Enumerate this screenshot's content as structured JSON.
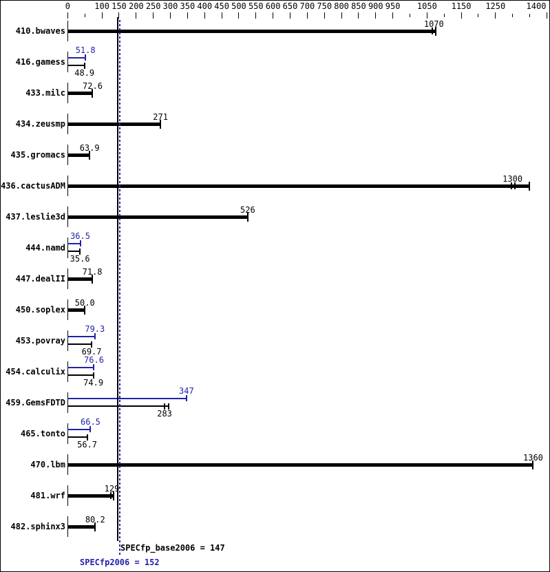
{
  "chart": {
    "background": "#ffffff",
    "colors": {
      "base": "#000000",
      "peak": "#2222aa"
    },
    "axis": {
      "max": 1400,
      "major_ticks": [
        {
          "value": 0,
          "label": "0"
        },
        {
          "value": 100,
          "label": "100"
        },
        {
          "value": 150,
          "label": "150"
        },
        {
          "value": 200,
          "label": "200"
        },
        {
          "value": 250,
          "label": "250"
        },
        {
          "value": 300,
          "label": "300"
        },
        {
          "value": 350,
          "label": "350"
        },
        {
          "value": 400,
          "label": "400"
        },
        {
          "value": 450,
          "label": "450"
        },
        {
          "value": 500,
          "label": "500"
        },
        {
          "value": 550,
          "label": "550"
        },
        {
          "value": 600,
          "label": "600"
        },
        {
          "value": 650,
          "label": "650"
        },
        {
          "value": 700,
          "label": "700"
        },
        {
          "value": 750,
          "label": "750"
        },
        {
          "value": 800,
          "label": "800"
        },
        {
          "value": 850,
          "label": "850"
        },
        {
          "value": 900,
          "label": "900"
        },
        {
          "value": 950,
          "label": "950"
        },
        {
          "value": 1050,
          "label": "1050"
        },
        {
          "value": 1150,
          "label": "1150"
        },
        {
          "value": 1250,
          "label": "1250"
        },
        {
          "value": 1400,
          "label": "1400"
        }
      ],
      "minor_ticks": [
        50,
        1000,
        1100,
        1200,
        1300,
        1350
      ]
    },
    "rows": [
      {
        "name": "410.bwaves",
        "bars": [
          {
            "series": "base",
            "label": "1070",
            "value": 1070,
            "end": 1075,
            "ticks": [
              1065,
              1075
            ],
            "label_side": "above"
          }
        ]
      },
      {
        "name": "416.gamess",
        "bars": [
          {
            "series": "peak",
            "label": "51.8",
            "value": 51.8,
            "end": 51.8,
            "ticks": [
              51.8
            ],
            "label_side": "above"
          },
          {
            "series": "base",
            "label": "48.9",
            "value": 48.9,
            "end": 48.9,
            "ticks": [
              48.9
            ],
            "label_side": "below"
          }
        ]
      },
      {
        "name": "433.milc",
        "bars": [
          {
            "series": "base",
            "label": "72.6",
            "value": 72.6,
            "end": 72.6,
            "ticks": [
              72.6
            ],
            "label_side": "above"
          }
        ]
      },
      {
        "name": "434.zeusmp",
        "bars": [
          {
            "series": "base",
            "label": "271",
            "value": 271,
            "end": 271,
            "ticks": [
              271
            ],
            "label_side": "above"
          }
        ]
      },
      {
        "name": "435.gromacs",
        "bars": [
          {
            "series": "base",
            "label": "63.9",
            "value": 63.9,
            "end": 63.9,
            "ticks": [
              63.9
            ],
            "label_side": "above"
          }
        ]
      },
      {
        "name": "436.cactusADM",
        "bars": [
          {
            "series": "base",
            "label": "1300",
            "value": 1300,
            "end": 1349,
            "ticks": [
              1297,
              1307
            ],
            "label_side": "above"
          }
        ]
      },
      {
        "name": "437.leslie3d",
        "bars": [
          {
            "series": "base",
            "label": "526",
            "value": 526,
            "end": 526,
            "ticks": [
              526
            ],
            "label_side": "above"
          }
        ]
      },
      {
        "name": "444.namd",
        "bars": [
          {
            "series": "peak",
            "label": "36.5",
            "value": 36.5,
            "end": 36.5,
            "ticks": [
              36.5
            ],
            "label_side": "above"
          },
          {
            "series": "base",
            "label": "35.6",
            "value": 35.6,
            "end": 35.6,
            "ticks": [
              35.6
            ],
            "label_side": "below"
          }
        ]
      },
      {
        "name": "447.dealII",
        "bars": [
          {
            "series": "base",
            "label": "71.8",
            "value": 71.8,
            "end": 71.8,
            "ticks": [
              71.8
            ],
            "label_side": "above"
          }
        ]
      },
      {
        "name": "450.soplex",
        "bars": [
          {
            "series": "base",
            "label": "50.0",
            "value": 50.0,
            "end": 50.0,
            "ticks": [
              50.0
            ],
            "label_side": "above"
          }
        ]
      },
      {
        "name": "453.povray",
        "bars": [
          {
            "series": "peak",
            "label": "79.3",
            "value": 79.3,
            "end": 79.3,
            "ticks": [
              79.3
            ],
            "label_side": "above"
          },
          {
            "series": "base",
            "label": "69.7",
            "value": 69.7,
            "end": 69.7,
            "ticks": [
              69.7
            ],
            "label_side": "below"
          }
        ]
      },
      {
        "name": "454.calculix",
        "bars": [
          {
            "series": "peak",
            "label": "76.6",
            "value": 76.6,
            "end": 76.6,
            "ticks": [
              76.6
            ],
            "label_side": "above"
          },
          {
            "series": "base",
            "label": "74.9",
            "value": 74.9,
            "end": 76.3,
            "ticks": [
              74.9,
              76.3
            ],
            "label_side": "below"
          }
        ]
      },
      {
        "name": "459.GemsFDTD",
        "bars": [
          {
            "series": "peak",
            "label": "347",
            "value": 347,
            "end": 347,
            "ticks": [
              347
            ],
            "label_side": "above"
          },
          {
            "series": "base",
            "label": "283",
            "value": 283,
            "end": 294,
            "ticks": [
              282,
              294
            ],
            "label_side": "below"
          }
        ]
      },
      {
        "name": "465.tonto",
        "bars": [
          {
            "series": "peak",
            "label": "66.5",
            "value": 66.5,
            "end": 66.5,
            "ticks": [
              66.5
            ],
            "label_side": "above"
          },
          {
            "series": "base",
            "label": "56.7",
            "value": 56.7,
            "end": 56.7,
            "ticks": [
              56.7
            ],
            "label_side": "below"
          }
        ]
      },
      {
        "name": "470.lbm",
        "bars": [
          {
            "series": "base",
            "label": "1360",
            "value": 1360,
            "end": 1360,
            "ticks": [
              1360
            ],
            "label_side": "above"
          }
        ]
      },
      {
        "name": "481.wrf",
        "bars": [
          {
            "series": "base",
            "label": "129",
            "value": 129,
            "end": 133,
            "ticks": [
              126,
              133
            ],
            "label_side": "above"
          }
        ]
      },
      {
        "name": "482.sphinx3",
        "bars": [
          {
            "series": "base",
            "label": "80.2",
            "value": 80.2,
            "end": 80.2,
            "ticks": [
              80.2
            ],
            "label_side": "above"
          }
        ]
      }
    ],
    "reference_lines": [
      {
        "name": "base",
        "value": 147,
        "style": "solid",
        "color": "#000000"
      },
      {
        "name": "peak",
        "value": 152,
        "style": "dotted",
        "color": "#2222aa"
      }
    ],
    "footer": {
      "base_text": "SPECfp_base2006 = 147",
      "peak_text": "SPECfp2006 = 152"
    }
  },
  "chart_data": {
    "type": "bar",
    "orientation": "horizontal",
    "title": "",
    "xlabel": "",
    "ylabel": "",
    "xlim": [
      0,
      1400
    ],
    "grid": false,
    "legend_position": "none",
    "categories": [
      "410.bwaves",
      "416.gamess",
      "433.milc",
      "434.zeusmp",
      "435.gromacs",
      "436.cactusADM",
      "437.leslie3d",
      "444.namd",
      "447.dealII",
      "450.soplex",
      "453.povray",
      "454.calculix",
      "459.GemsFDTD",
      "465.tonto",
      "470.lbm",
      "481.wrf",
      "482.sphinx3"
    ],
    "series": [
      {
        "name": "peak (SPECfp2006)",
        "color": "#2222aa",
        "values": [
          null,
          51.8,
          null,
          null,
          null,
          null,
          null,
          36.5,
          null,
          null,
          79.3,
          76.6,
          347,
          66.5,
          null,
          null,
          null
        ]
      },
      {
        "name": "base (SPECfp_base2006)",
        "color": "#000000",
        "values": [
          1070,
          48.9,
          72.6,
          271,
          63.9,
          1300,
          526,
          35.6,
          71.8,
          50.0,
          69.7,
          74.9,
          283,
          56.7,
          1360,
          129,
          80.2
        ]
      }
    ],
    "reference_lines": [
      {
        "label": "SPECfp_base2006 = 147",
        "value": 147
      },
      {
        "label": "SPECfp2006 = 152",
        "value": 152
      }
    ],
    "overall_scores": {
      "SPECfp_base2006": 147,
      "SPECfp2006": 152
    }
  }
}
